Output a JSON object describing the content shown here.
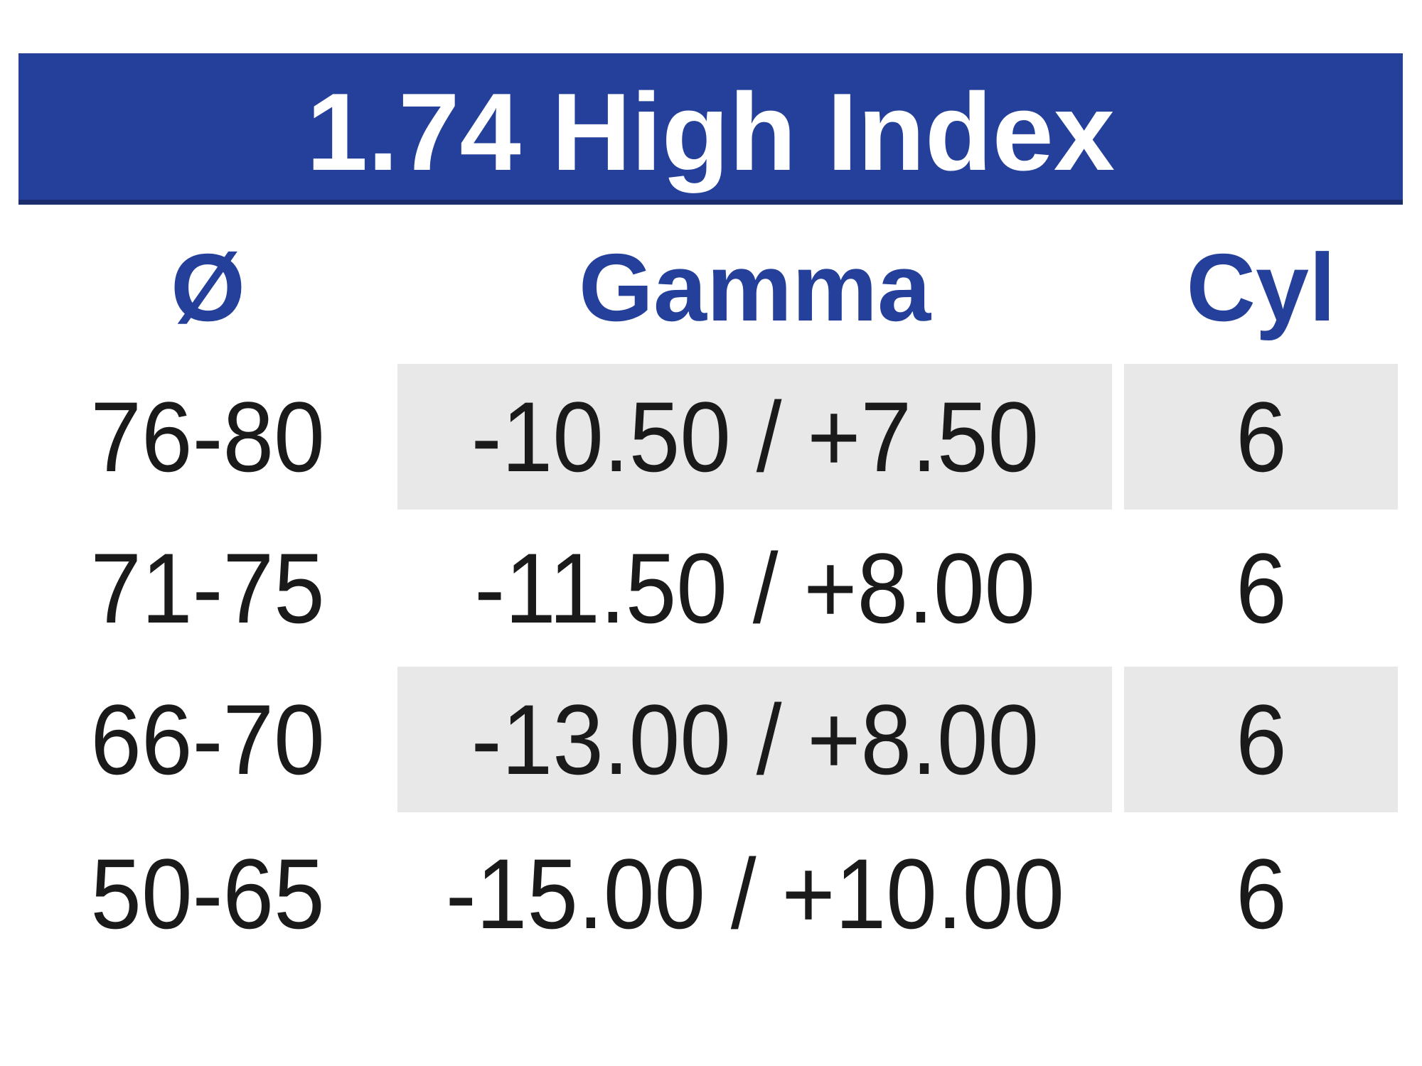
{
  "title": "1.74 High Index",
  "table": {
    "columns": [
      "Ø",
      "Gamma",
      "Cyl"
    ],
    "rows": [
      {
        "diameter": "76-80",
        "gamma": "-10.50 / +7.50",
        "cyl": "6",
        "shaded": true
      },
      {
        "diameter": "71-75",
        "gamma": "-11.50 / +8.00",
        "cyl": "6",
        "shaded": false
      },
      {
        "diameter": "66-70",
        "gamma": "-13.00 / +8.00",
        "cyl": "6",
        "shaded": true
      },
      {
        "diameter": "50-65",
        "gamma": "-15.00 / +10.00",
        "cyl": "6",
        "shaded": false
      }
    ]
  },
  "colors": {
    "banner_blue": "#24409A",
    "banner_bottom_border": "#1C2D6E",
    "header_text_blue": "#24409A",
    "row_shade_gray": "#E8E8E8",
    "body_text_black": "#1A1A1A",
    "background": "#FFFFFF"
  },
  "chart_data": {
    "type": "table",
    "title": "1.74 High Index",
    "columns": [
      "Ø",
      "Gamma",
      "Cyl"
    ],
    "rows": [
      [
        "76-80",
        "-10.50 / +7.50",
        "6"
      ],
      [
        "71-75",
        "-11.50 / +8.00",
        "6"
      ],
      [
        "66-70",
        "-13.00 / +8.00",
        "6"
      ],
      [
        "50-65",
        "-15.00 / +10.00",
        "6"
      ]
    ]
  }
}
